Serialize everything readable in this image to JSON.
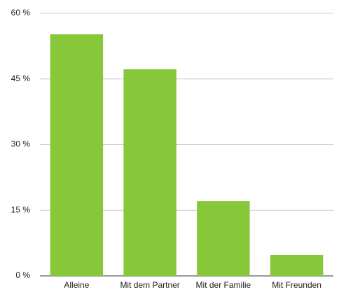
{
  "chart_data": {
    "type": "bar",
    "categories": [
      "Alleine",
      "Mit dem Partner",
      "Mit der Familie",
      "Mit Freunden"
    ],
    "values": [
      55.2,
      47.2,
      17.1,
      4.8
    ],
    "color": "#86c83a",
    "ylim": [
      0,
      60
    ],
    "yticks": [
      {
        "value": 0,
        "label": "0 %"
      },
      {
        "value": 15,
        "label": "15 %"
      },
      {
        "value": 30,
        "label": "30 %"
      },
      {
        "value": 45,
        "label": "45 %"
      },
      {
        "value": 60,
        "label": "60 %"
      }
    ],
    "grid": true
  }
}
